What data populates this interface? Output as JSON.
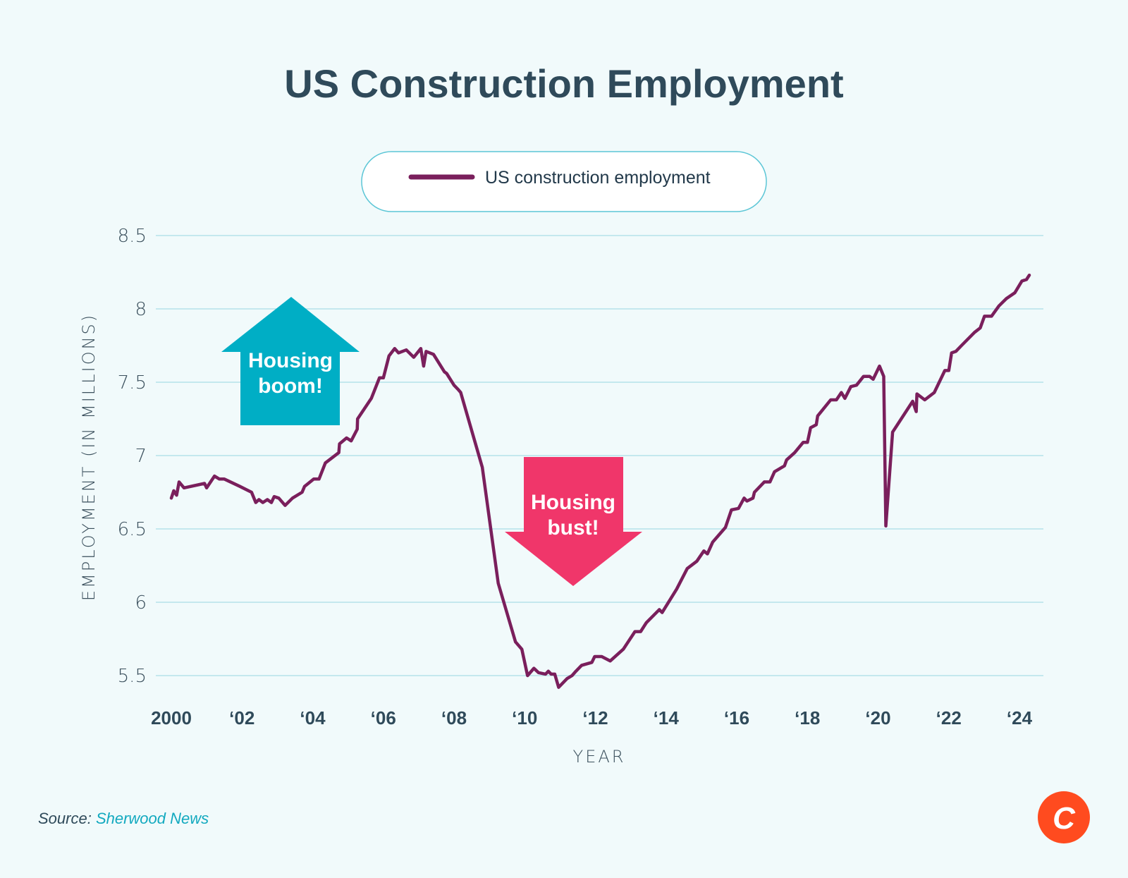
{
  "chart_data": {
    "type": "line",
    "title": "US Construction Employment",
    "xlabel": "YEAR",
    "ylabel": "EMPLOYMENT (IN MILLIONS)",
    "ylim": [
      5.5,
      8.5
    ],
    "xlim": [
      2000,
      2024
    ],
    "grid": true,
    "legend_placement": "top-center",
    "yticks": [
      8.5,
      8,
      7.5,
      7,
      6.5,
      6,
      5.5
    ],
    "ytick_labels": [
      "8.5",
      "8",
      "7.5",
      "7",
      "6.5",
      "6",
      "5.5"
    ],
    "xticks": [
      2000,
      2002,
      2004,
      2006,
      2008,
      2010,
      2012,
      2014,
      2016,
      2018,
      2020,
      2022,
      2024
    ],
    "xtick_labels": [
      "2000",
      "‘02",
      "‘04",
      "‘06",
      "‘08",
      "‘10",
      "‘12",
      "‘14",
      "‘16",
      "‘18",
      "‘20",
      "‘22",
      "‘24"
    ],
    "series": [
      {
        "name": "US construction employment",
        "color": "#7A1F5C",
        "x": [
          2000.0,
          2000.07,
          2000.15,
          2000.22,
          2000.36,
          2000.94,
          2001.0,
          2001.22,
          2001.36,
          2001.5,
          2001.94,
          2002.27,
          2002.39,
          2002.48,
          2002.59,
          2002.72,
          2002.83,
          2002.91,
          2003.04,
          2003.22,
          2003.43,
          2003.7,
          2003.77,
          2004.03,
          2004.18,
          2004.36,
          2004.74,
          2004.76,
          2004.96,
          2005.09,
          2005.26,
          2005.27,
          2005.66,
          2005.89,
          2006.0,
          2006.16,
          2006.32,
          2006.43,
          2006.65,
          2006.86,
          2007.06,
          2007.14,
          2007.21,
          2007.42,
          2007.73,
          2007.79,
          2008.0,
          2008.12,
          2008.19,
          2008.8,
          2009.25,
          2009.74,
          2009.92,
          2010.08,
          2010.26,
          2010.39,
          2010.59,
          2010.67,
          2010.75,
          2010.85,
          2010.96,
          2011.2,
          2011.34,
          2011.45,
          2011.61,
          2011.9,
          2011.98,
          2012.18,
          2012.42,
          2012.79,
          2013.12,
          2013.28,
          2013.44,
          2013.81,
          2013.89,
          2014.3,
          2014.6,
          2014.87,
          2015.07,
          2015.17,
          2015.32,
          2015.68,
          2015.85,
          2016.05,
          2016.21,
          2016.29,
          2016.46,
          2016.5,
          2016.78,
          2016.94,
          2017.07,
          2017.35,
          2017.41,
          2017.64,
          2017.88,
          2018.0,
          2018.09,
          2018.25,
          2018.29,
          2018.66,
          2018.82,
          2018.96,
          2019.06,
          2019.23,
          2019.39,
          2019.59,
          2019.76,
          2019.86,
          2020.04,
          2020.16,
          2020.22,
          2020.41,
          2020.98,
          2021.08,
          2021.1,
          2021.32,
          2021.59,
          2021.89,
          2022.0,
          2022.08,
          2022.2,
          2022.36,
          2022.73,
          2022.89,
          2023.01,
          2023.21,
          2023.42,
          2023.63,
          2023.87,
          2024.07,
          2024.2,
          2024.28
        ],
        "values": [
          6.71,
          6.76,
          6.73,
          6.82,
          6.78,
          6.81,
          6.78,
          6.86,
          6.84,
          6.84,
          6.79,
          6.75,
          6.68,
          6.7,
          6.68,
          6.7,
          6.68,
          6.72,
          6.71,
          6.66,
          6.71,
          6.75,
          6.79,
          6.84,
          6.84,
          6.95,
          7.02,
          7.08,
          7.12,
          7.1,
          7.18,
          7.25,
          7.39,
          7.53,
          7.53,
          7.68,
          7.73,
          7.7,
          7.72,
          7.67,
          7.73,
          7.61,
          7.71,
          7.69,
          7.57,
          7.56,
          7.48,
          7.45,
          7.43,
          6.92,
          6.13,
          5.73,
          5.68,
          5.5,
          5.55,
          5.52,
          5.51,
          5.53,
          5.51,
          5.51,
          5.42,
          5.48,
          5.5,
          5.53,
          5.57,
          5.59,
          5.63,
          5.63,
          5.6,
          5.68,
          5.8,
          5.8,
          5.86,
          5.95,
          5.93,
          6.09,
          6.23,
          6.28,
          6.35,
          6.33,
          6.41,
          6.51,
          6.63,
          6.64,
          6.71,
          6.69,
          6.71,
          6.75,
          6.82,
          6.82,
          6.89,
          6.93,
          6.97,
          7.02,
          7.09,
          7.09,
          7.19,
          7.21,
          7.27,
          7.38,
          7.38,
          7.43,
          7.39,
          7.47,
          7.48,
          7.54,
          7.54,
          7.52,
          7.61,
          7.54,
          6.52,
          7.16,
          7.37,
          7.3,
          7.42,
          7.38,
          7.43,
          7.58,
          7.58,
          7.7,
          7.71,
          7.75,
          7.84,
          7.87,
          7.95,
          7.95,
          8.02,
          8.07,
          8.11,
          8.19,
          8.2,
          8.23
        ]
      }
    ],
    "annotations": [
      {
        "text_lines": [
          "Housing",
          "boom!"
        ],
        "shape": "up-arrow",
        "color": "#00AEC5"
      },
      {
        "text_lines": [
          "Housing",
          "bust!"
        ],
        "shape": "down-arrow",
        "color": "#F0366A"
      }
    ]
  },
  "source": {
    "label": "Source:",
    "name": "Sherwood News",
    "name_color": "#12A9BF"
  },
  "logo": {
    "letter": "C",
    "color": "#FF4B1F"
  },
  "colors": {
    "background": "#F1FAFB",
    "grid": "#A9DDE6",
    "text": "#2F4A5A"
  }
}
